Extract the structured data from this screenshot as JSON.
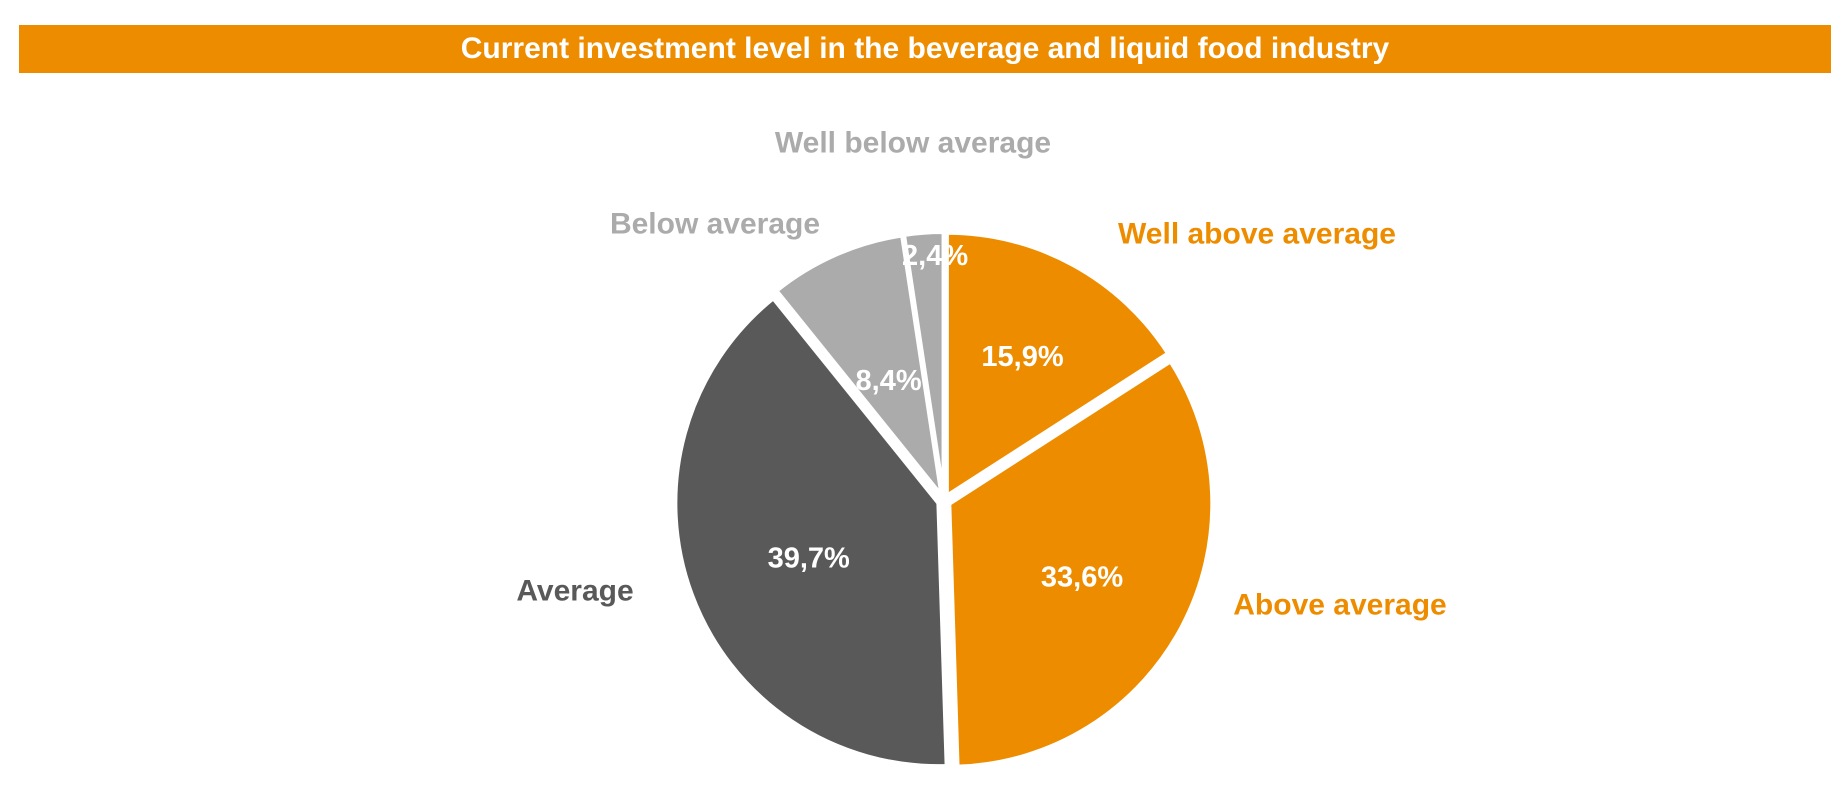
{
  "header": {
    "title": "Current investment level in the beverage and liquid food industry",
    "bg_color": "#EE8C00",
    "text_color": "#FFFFFF"
  },
  "chart_data": {
    "type": "pie",
    "title": "Current investment level in the beverage and liquid food industry",
    "start_angle_deg": 0,
    "direction": "clockwise",
    "unit": "%",
    "decimal_separator": ",",
    "exploded": true,
    "grid": false,
    "legend_position": "labels-around-slices",
    "value_label_color": "#FFFFFF",
    "slices": [
      {
        "label": "Well above average",
        "value": 15.9,
        "value_display": "15,9%",
        "color": "#EE8C00",
        "label_color": "#EE8C00"
      },
      {
        "label": "Above average",
        "value": 33.6,
        "value_display": "33,6%",
        "color": "#EE8C00",
        "label_color": "#EE8C00"
      },
      {
        "label": "Average",
        "value": 39.7,
        "value_display": "39,7%",
        "color": "#595959",
        "label_color": "#595959"
      },
      {
        "label": "Below average",
        "value": 8.4,
        "value_display": "8,4%",
        "color": "#ABABAB",
        "label_color": "#ABABAB"
      },
      {
        "label": "Well below average",
        "value": 2.4,
        "value_display": "2,4%",
        "color": "#ABABAB",
        "label_color": "#ABABAB"
      }
    ]
  }
}
